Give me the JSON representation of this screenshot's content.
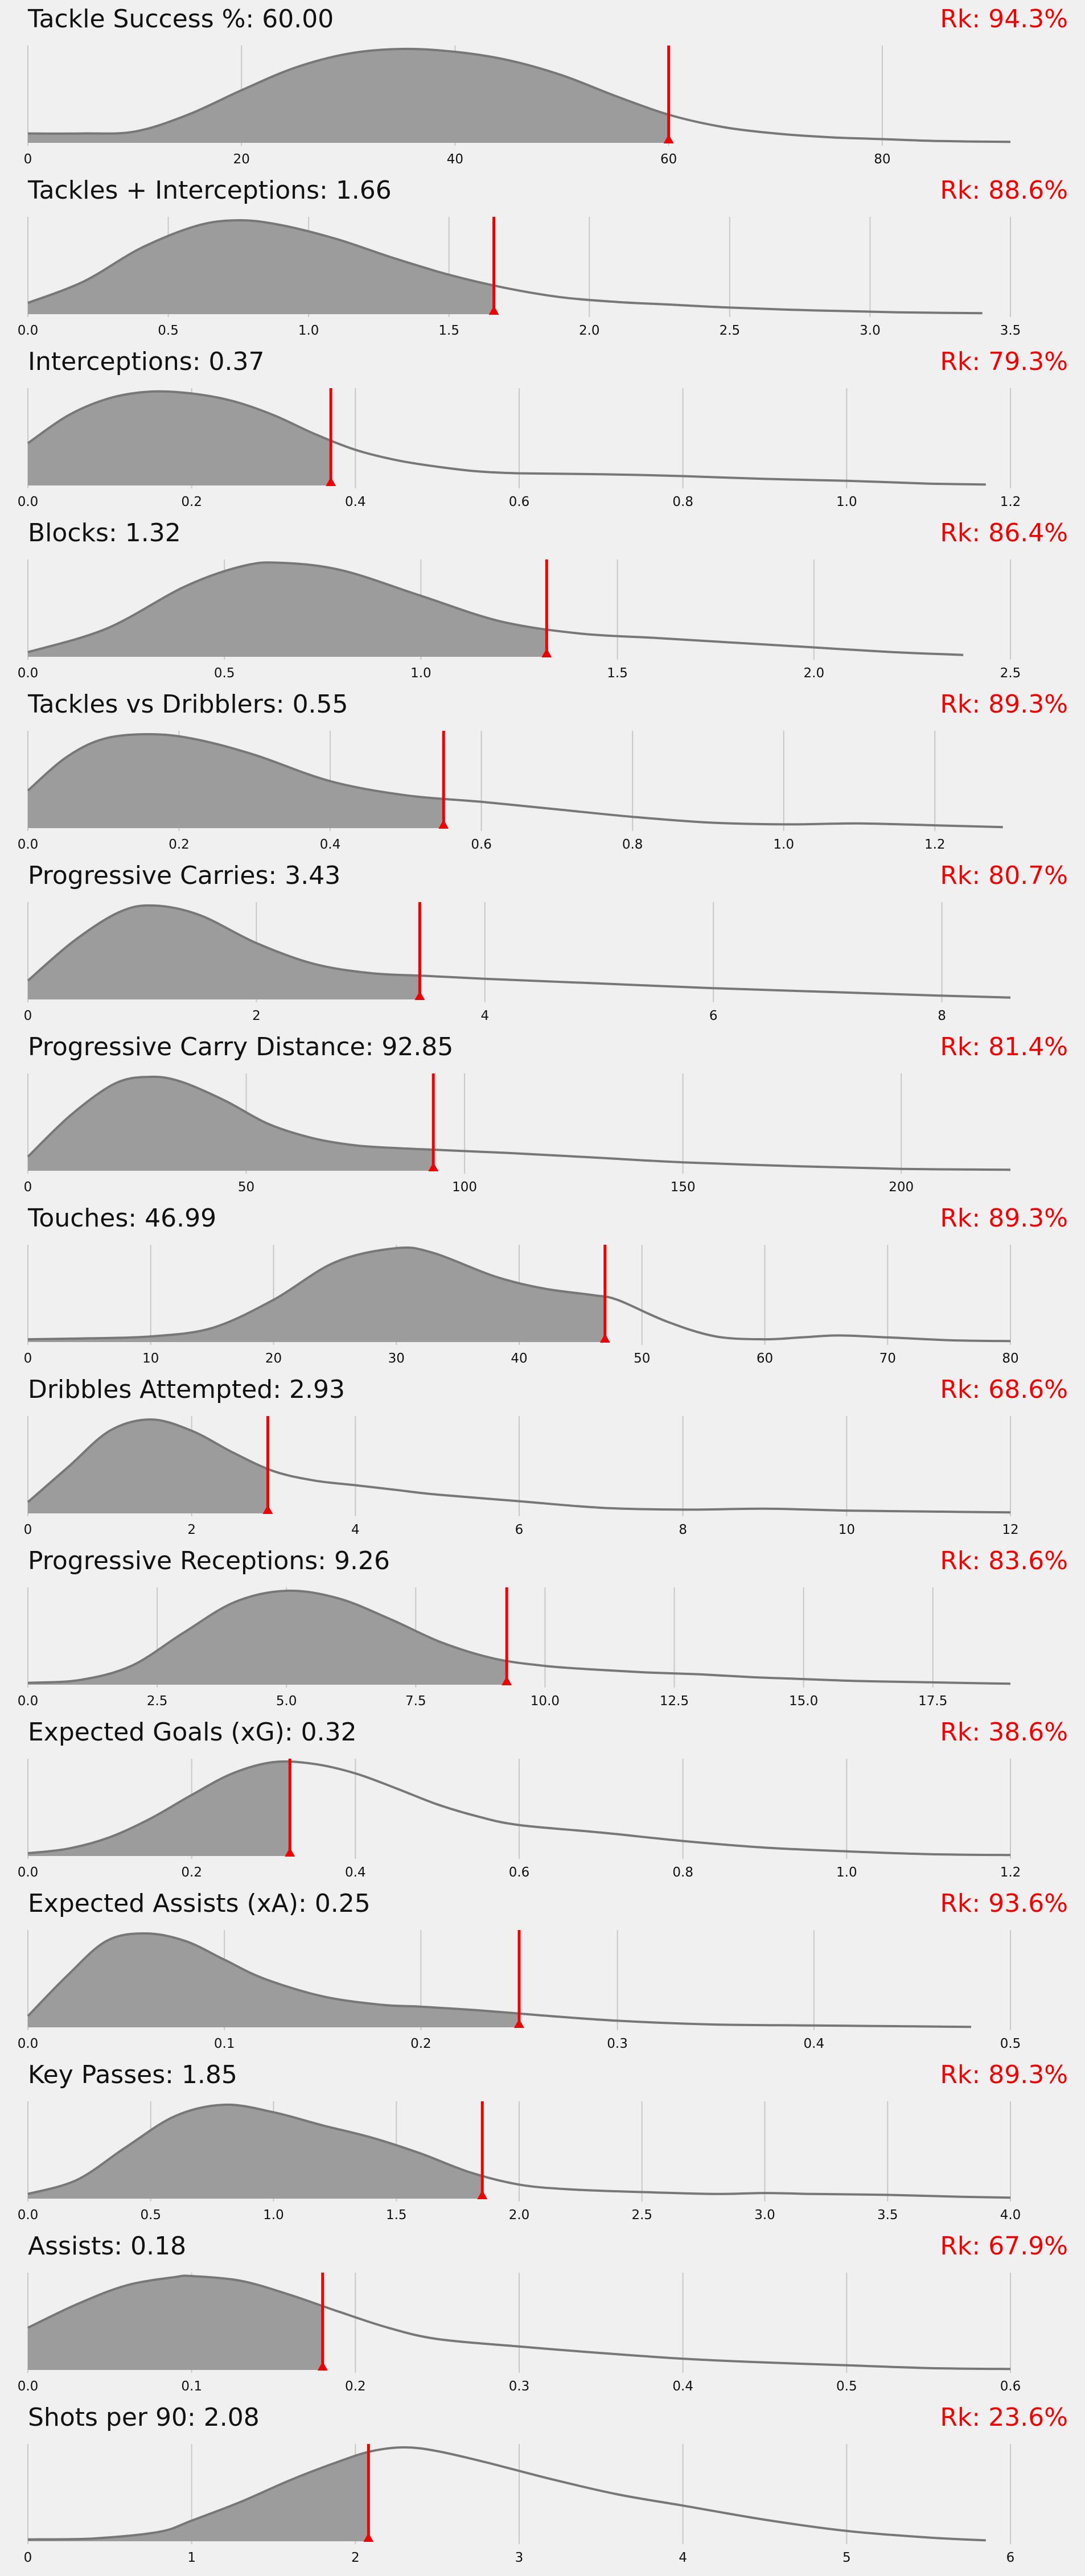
{
  "chart_data": [
    {
      "type": "area",
      "metric": "Tackle Success %",
      "value_label": "60.00",
      "value": 60.0,
      "rank_label": "Rk: 94.3%",
      "xlim": [
        0,
        92
      ],
      "ticks": [
        "0",
        "20",
        "40",
        "60",
        "80"
      ],
      "tick_values": [
        0,
        20,
        40,
        60,
        80
      ],
      "density_x": [
        0,
        5,
        10,
        15,
        20,
        25,
        30,
        35,
        40,
        45,
        50,
        55,
        60,
        65,
        70,
        75,
        80,
        85,
        92
      ],
      "density_y": [
        0.1,
        0.1,
        0.12,
        0.3,
        0.56,
        0.8,
        0.95,
        1.0,
        0.97,
        0.88,
        0.72,
        0.5,
        0.3,
        0.17,
        0.1,
        0.06,
        0.04,
        0.02,
        0.01
      ]
    },
    {
      "type": "area",
      "metric": "Tackles + Interceptions",
      "value_label": "1.66",
      "value": 1.66,
      "rank_label": "Rk: 88.6%",
      "xlim": [
        0,
        3.5
      ],
      "ticks": [
        "0.0",
        "0.5",
        "1.0",
        "1.5",
        "2.0",
        "2.5",
        "3.0",
        "3.5"
      ],
      "tick_values": [
        0,
        0.5,
        1.0,
        1.5,
        2.0,
        2.5,
        3.0,
        3.5
      ],
      "density_x": [
        0,
        0.2,
        0.4,
        0.6,
        0.75,
        0.9,
        1.1,
        1.3,
        1.5,
        1.7,
        1.9,
        2.1,
        2.3,
        2.5,
        2.8,
        3.1,
        3.4
      ],
      "density_y": [
        0.12,
        0.35,
        0.7,
        0.94,
        1.0,
        0.95,
        0.8,
        0.6,
        0.42,
        0.28,
        0.18,
        0.13,
        0.1,
        0.07,
        0.04,
        0.02,
        0.01
      ]
    },
    {
      "type": "area",
      "metric": "Interceptions",
      "value_label": "0.37",
      "value": 0.37,
      "rank_label": "Rk: 79.3%",
      "xlim": [
        0,
        1.2
      ],
      "ticks": [
        "0.0",
        "0.2",
        "0.4",
        "0.6",
        "0.8",
        "1.0",
        "1.2"
      ],
      "tick_values": [
        0,
        0.2,
        0.4,
        0.6,
        0.8,
        1.0,
        1.2
      ],
      "density_x": [
        0,
        0.05,
        0.1,
        0.15,
        0.2,
        0.25,
        0.3,
        0.35,
        0.4,
        0.45,
        0.5,
        0.55,
        0.6,
        0.7,
        0.8,
        0.9,
        1.0,
        1.1,
        1.17
      ],
      "density_y": [
        0.45,
        0.75,
        0.93,
        1.0,
        0.98,
        0.9,
        0.75,
        0.55,
        0.38,
        0.27,
        0.2,
        0.15,
        0.13,
        0.12,
        0.1,
        0.07,
        0.05,
        0.02,
        0.01
      ]
    },
    {
      "type": "area",
      "metric": "Blocks",
      "value_label": "1.32",
      "value": 1.32,
      "rank_label": "Rk: 86.4%",
      "xlim": [
        0,
        2.5
      ],
      "ticks": [
        "0.0",
        "0.5",
        "1.0",
        "1.5",
        "2.0",
        "2.5"
      ],
      "tick_values": [
        0,
        0.5,
        1.0,
        1.5,
        2.0,
        2.5
      ],
      "density_x": [
        0,
        0.2,
        0.4,
        0.55,
        0.65,
        0.8,
        1.0,
        1.2,
        1.4,
        1.6,
        1.8,
        2.0,
        2.2,
        2.38
      ],
      "density_y": [
        0.05,
        0.3,
        0.75,
        0.97,
        1.0,
        0.92,
        0.65,
        0.38,
        0.25,
        0.2,
        0.15,
        0.1,
        0.05,
        0.02
      ]
    },
    {
      "type": "area",
      "metric": "Tackles vs Dribblers",
      "value_label": "0.55",
      "value": 0.55,
      "rank_label": "Rk: 89.3%",
      "xlim": [
        0,
        1.3
      ],
      "ticks": [
        "0.0",
        "0.2",
        "0.4",
        "0.6",
        "0.8",
        "1.0",
        "1.2"
      ],
      "tick_values": [
        0,
        0.2,
        0.4,
        0.6,
        0.8,
        1.0,
        1.2
      ],
      "density_x": [
        0,
        0.05,
        0.1,
        0.16,
        0.22,
        0.3,
        0.4,
        0.5,
        0.6,
        0.7,
        0.8,
        0.9,
        1.0,
        1.1,
        1.2,
        1.29
      ],
      "density_y": [
        0.4,
        0.75,
        0.95,
        1.0,
        0.95,
        0.78,
        0.5,
        0.35,
        0.28,
        0.2,
        0.12,
        0.06,
        0.04,
        0.05,
        0.03,
        0.01
      ]
    },
    {
      "type": "area",
      "metric": "Progressive Carries",
      "value_label": "3.43",
      "value": 3.43,
      "rank_label": "Rk: 80.7%",
      "xlim": [
        0,
        8.6
      ],
      "ticks": [
        "0",
        "2",
        "4",
        "6",
        "8"
      ],
      "tick_values": [
        0,
        2,
        4,
        6,
        8
      ],
      "density_x": [
        0,
        0.4,
        0.8,
        1.1,
        1.5,
        2.0,
        2.5,
        3.0,
        3.5,
        4.0,
        5.0,
        6.0,
        7.0,
        8.0,
        8.6
      ],
      "density_y": [
        0.2,
        0.62,
        0.93,
        1.0,
        0.9,
        0.6,
        0.38,
        0.28,
        0.25,
        0.22,
        0.17,
        0.12,
        0.08,
        0.04,
        0.02
      ]
    },
    {
      "type": "area",
      "metric": "Progressive Carry Distance",
      "value_label": "92.85",
      "value": 92.85,
      "rank_label": "Rk: 81.4%",
      "xlim": [
        0,
        225
      ],
      "ticks": [
        "0",
        "50",
        "100",
        "150",
        "200"
      ],
      "tick_values": [
        0,
        50,
        100,
        150,
        200
      ],
      "density_x": [
        0,
        10,
        20,
        28,
        35,
        45,
        55,
        65,
        75,
        85,
        95,
        110,
        130,
        150,
        175,
        200,
        225
      ],
      "density_y": [
        0.15,
        0.6,
        0.93,
        1.0,
        0.95,
        0.75,
        0.5,
        0.35,
        0.27,
        0.24,
        0.22,
        0.19,
        0.14,
        0.09,
        0.05,
        0.02,
        0.01
      ]
    },
    {
      "type": "area",
      "metric": "Touches",
      "value_label": "46.99",
      "value": 46.99,
      "rank_label": "Rk: 89.3%",
      "xlim": [
        0,
        80
      ],
      "ticks": [
        "0",
        "10",
        "20",
        "30",
        "40",
        "50",
        "60",
        "70",
        "80"
      ],
      "tick_values": [
        0,
        10,
        20,
        30,
        40,
        50,
        60,
        70,
        80
      ],
      "density_x": [
        0,
        5,
        10,
        15,
        20,
        25,
        30,
        33,
        38,
        42,
        46,
        48,
        52,
        56,
        60,
        63,
        66,
        70,
        75,
        80
      ],
      "density_y": [
        0.03,
        0.04,
        0.06,
        0.15,
        0.45,
        0.85,
        1.0,
        0.95,
        0.7,
        0.57,
        0.5,
        0.45,
        0.22,
        0.06,
        0.03,
        0.05,
        0.07,
        0.05,
        0.02,
        0.01
      ]
    },
    {
      "type": "area",
      "metric": "Dribbles Attempted",
      "value_label": "2.93",
      "value": 2.93,
      "rank_label": "Rk: 68.6%",
      "xlim": [
        0,
        12
      ],
      "ticks": [
        "0",
        "2",
        "4",
        "6",
        "8",
        "10",
        "12"
      ],
      "tick_values": [
        0,
        2,
        4,
        6,
        8,
        10,
        12
      ],
      "density_x": [
        0,
        0.5,
        1.0,
        1.5,
        2.0,
        2.5,
        3.0,
        3.5,
        4.0,
        4.5,
        5.0,
        6.0,
        7.0,
        8.0,
        9.0,
        10.0,
        11.0,
        12.0
      ],
      "density_y": [
        0.12,
        0.5,
        0.88,
        1.0,
        0.88,
        0.65,
        0.45,
        0.35,
        0.3,
        0.25,
        0.2,
        0.13,
        0.06,
        0.04,
        0.05,
        0.03,
        0.02,
        0.01
      ]
    },
    {
      "type": "area",
      "metric": "Progressive Receptions",
      "value_label": "9.26",
      "value": 9.26,
      "rank_label": "Rk: 83.6%",
      "xlim": [
        0,
        19
      ],
      "ticks": [
        "0.0",
        "2.5",
        "5.0",
        "7.5",
        "10.0",
        "12.5",
        "15.0",
        "17.5"
      ],
      "tick_values": [
        0,
        2.5,
        5.0,
        7.5,
        10.0,
        12.5,
        15.0,
        17.5
      ],
      "density_x": [
        0,
        1,
        2,
        3,
        4,
        5,
        6,
        7,
        8,
        9,
        10,
        11,
        12,
        13,
        14,
        15,
        16,
        17,
        18,
        19
      ],
      "density_y": [
        0.02,
        0.05,
        0.2,
        0.55,
        0.88,
        1.0,
        0.92,
        0.7,
        0.45,
        0.28,
        0.2,
        0.16,
        0.13,
        0.11,
        0.08,
        0.06,
        0.04,
        0.03,
        0.02,
        0.01
      ]
    },
    {
      "type": "area",
      "metric": "Expected Goals (xG)",
      "value_label": "0.32",
      "value": 0.32,
      "rank_label": "Rk: 38.6%",
      "xlim": [
        0,
        1.2
      ],
      "ticks": [
        "0.0",
        "0.2",
        "0.4",
        "0.6",
        "0.8",
        "1.0",
        "1.2"
      ],
      "tick_values": [
        0,
        0.2,
        0.4,
        0.6,
        0.8,
        1.0,
        1.2
      ],
      "density_x": [
        0,
        0.05,
        0.1,
        0.15,
        0.2,
        0.25,
        0.3,
        0.35,
        0.4,
        0.45,
        0.5,
        0.55,
        0.6,
        0.7,
        0.8,
        0.9,
        1.0,
        1.1,
        1.2
      ],
      "density_y": [
        0.03,
        0.08,
        0.2,
        0.4,
        0.65,
        0.88,
        1.0,
        0.98,
        0.88,
        0.72,
        0.55,
        0.42,
        0.33,
        0.25,
        0.16,
        0.09,
        0.05,
        0.02,
        0.01
      ]
    },
    {
      "type": "area",
      "metric": "Expected Assists (xA)",
      "value_label": "0.25",
      "value": 0.25,
      "rank_label": "Rk: 93.6%",
      "xlim": [
        0,
        0.5
      ],
      "ticks": [
        "0.0",
        "0.1",
        "0.2",
        "0.3",
        "0.4",
        "0.5"
      ],
      "tick_values": [
        0,
        0.1,
        0.2,
        0.3,
        0.4,
        0.5
      ],
      "density_x": [
        0,
        0.02,
        0.04,
        0.06,
        0.08,
        0.1,
        0.12,
        0.15,
        0.18,
        0.2,
        0.23,
        0.26,
        0.3,
        0.35,
        0.4,
        0.45,
        0.48
      ],
      "density_y": [
        0.12,
        0.55,
        0.92,
        1.0,
        0.92,
        0.72,
        0.52,
        0.33,
        0.24,
        0.22,
        0.18,
        0.13,
        0.07,
        0.03,
        0.02,
        0.01,
        0.005
      ]
    },
    {
      "type": "area",
      "metric": "Key Passes",
      "value_label": "1.85",
      "value": 1.85,
      "rank_label": "Rk: 89.3%",
      "xlim": [
        0,
        4.0
      ],
      "ticks": [
        "0.0",
        "0.5",
        "1.0",
        "1.5",
        "2.0",
        "2.5",
        "3.0",
        "3.5",
        "4.0"
      ],
      "tick_values": [
        0,
        0.5,
        1.0,
        1.5,
        2.0,
        2.5,
        3.0,
        3.5,
        4.0
      ],
      "density_x": [
        0,
        0.2,
        0.4,
        0.6,
        0.8,
        1.0,
        1.2,
        1.4,
        1.6,
        1.8,
        2.0,
        2.2,
        2.5,
        2.8,
        3.0,
        3.2,
        3.5,
        3.8,
        4.0
      ],
      "density_y": [
        0.05,
        0.2,
        0.55,
        0.88,
        1.0,
        0.92,
        0.78,
        0.65,
        0.48,
        0.28,
        0.15,
        0.1,
        0.07,
        0.05,
        0.06,
        0.05,
        0.04,
        0.02,
        0.01
      ]
    },
    {
      "type": "area",
      "metric": "Assists",
      "value_label": "0.18",
      "value": 0.18,
      "rank_label": "Rk: 67.9%",
      "xlim": [
        0,
        0.6
      ],
      "ticks": [
        "0.0",
        "0.1",
        "0.2",
        "0.3",
        "0.4",
        "0.5",
        "0.6"
      ],
      "tick_values": [
        0,
        0.1,
        0.2,
        0.3,
        0.4,
        0.5,
        0.6
      ],
      "density_x": [
        0,
        0.03,
        0.06,
        0.09,
        0.1,
        0.13,
        0.16,
        0.19,
        0.22,
        0.25,
        0.3,
        0.35,
        0.4,
        0.45,
        0.5,
        0.55,
        0.6
      ],
      "density_y": [
        0.45,
        0.7,
        0.9,
        0.99,
        1.0,
        0.95,
        0.8,
        0.62,
        0.45,
        0.33,
        0.25,
        0.18,
        0.12,
        0.08,
        0.05,
        0.02,
        0.01
      ]
    },
    {
      "type": "area",
      "metric": "Shots per 90",
      "value_label": "2.08",
      "value": 2.08,
      "rank_label": "Rk: 23.6%",
      "xlim": [
        0,
        6
      ],
      "ticks": [
        "0",
        "1",
        "2",
        "3",
        "4",
        "5",
        "6"
      ],
      "tick_values": [
        0,
        1,
        2,
        3,
        4,
        5,
        6
      ],
      "density_x": [
        0,
        0.4,
        0.8,
        1.0,
        1.3,
        1.6,
        1.9,
        2.1,
        2.3,
        2.5,
        2.8,
        3.2,
        3.6,
        4.0,
        4.5,
        5.0,
        5.5,
        5.85
      ],
      "density_y": [
        0.02,
        0.03,
        0.1,
        0.22,
        0.42,
        0.65,
        0.85,
        0.96,
        1.0,
        0.96,
        0.84,
        0.66,
        0.5,
        0.38,
        0.23,
        0.11,
        0.04,
        0.01
      ]
    }
  ]
}
